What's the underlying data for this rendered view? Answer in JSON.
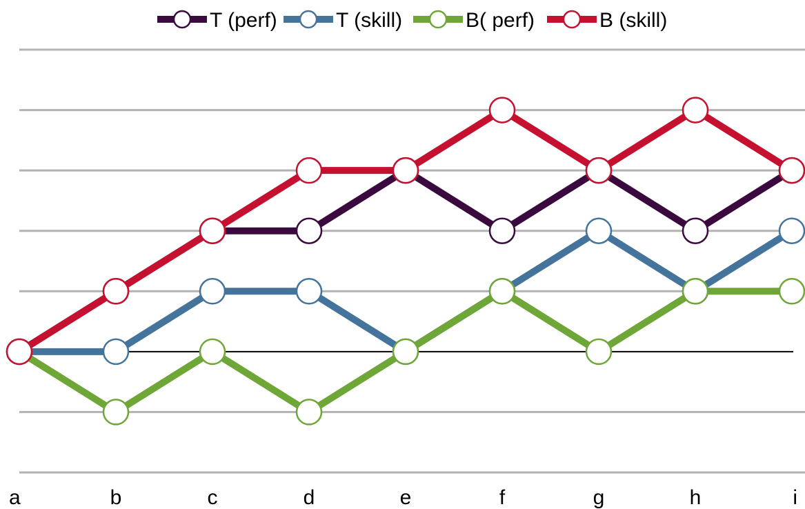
{
  "chart_data": {
    "type": "line",
    "categories": [
      "a",
      "b",
      "c",
      "d",
      "e",
      "f",
      "g",
      "h",
      "i"
    ],
    "ylim": [
      -2,
      5
    ],
    "baseline": 0,
    "grid": true,
    "legend_position": "top",
    "title": "",
    "xlabel": "",
    "ylabel": "",
    "series": [
      {
        "name": "T (perf)",
        "color": "#3a0a3f",
        "values": [
          0,
          1,
          2,
          2,
          3,
          2,
          3,
          2,
          3
        ]
      },
      {
        "name": "T (skill)",
        "color": "#44749b",
        "values": [
          0,
          0,
          1,
          1,
          0,
          1,
          2,
          1,
          2
        ]
      },
      {
        "name": "B( perf)",
        "color": "#6ea637",
        "values": [
          0,
          -1,
          0,
          -1,
          0,
          1,
          0,
          1,
          1
        ]
      },
      {
        "name": "B (skill)",
        "color": "#c5102f",
        "values": [
          0,
          1,
          2,
          3,
          3,
          4,
          3,
          4,
          3
        ]
      }
    ]
  }
}
